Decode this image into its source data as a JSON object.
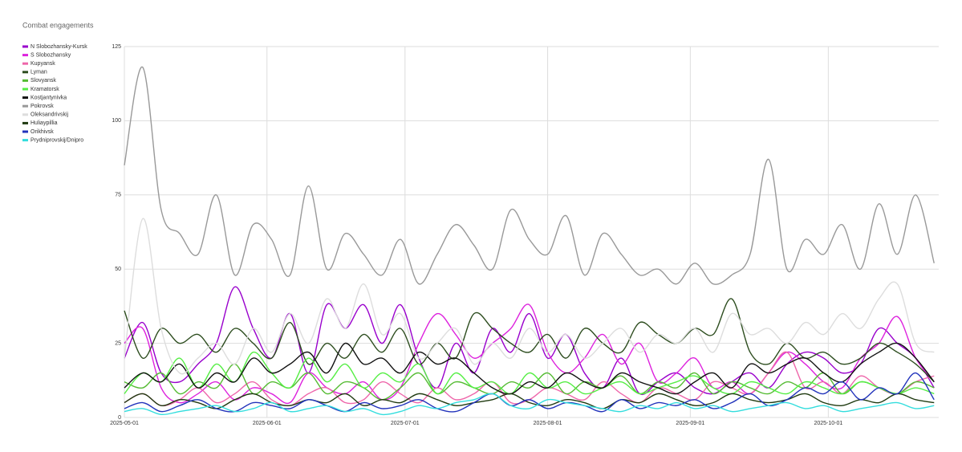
{
  "chart_data": {
    "type": "line",
    "title": "Combat engagements",
    "x": [
      "2025-05-01",
      "2025-05-05",
      "2025-05-09",
      "2025-05-13",
      "2025-05-17",
      "2025-05-21",
      "2025-05-25",
      "2025-05-29",
      "2025-06-02",
      "2025-06-06",
      "2025-06-10",
      "2025-06-14",
      "2025-06-18",
      "2025-06-22",
      "2025-06-26",
      "2025-06-30",
      "2025-07-04",
      "2025-07-08",
      "2025-07-12",
      "2025-07-16",
      "2025-07-20",
      "2025-07-24",
      "2025-07-28",
      "2025-08-01",
      "2025-08-05",
      "2025-08-09",
      "2025-08-13",
      "2025-08-17",
      "2025-08-21",
      "2025-08-25",
      "2025-08-29",
      "2025-09-02",
      "2025-09-06",
      "2025-09-10",
      "2025-09-14",
      "2025-09-18",
      "2025-09-22",
      "2025-09-26",
      "2025-09-30",
      "2025-10-04",
      "2025-10-08",
      "2025-10-12",
      "2025-10-16",
      "2025-10-20",
      "2025-10-24"
    ],
    "xlim": [
      "2025-05-01",
      "2025-10-25"
    ],
    "xticks": [
      "2025-05-01",
      "2025-06-01",
      "2025-07-01",
      "2025-08-01",
      "2025-09-01",
      "2025-10-01"
    ],
    "ylim": [
      0,
      125
    ],
    "yticks": [
      0,
      25,
      50,
      75,
      100,
      125
    ],
    "grid": true,
    "series": [
      {
        "name": "N Slobozhansky-Kursk",
        "color": "#9900cc",
        "values": [
          20,
          32,
          15,
          12,
          18,
          25,
          44,
          30,
          20,
          35,
          15,
          38,
          30,
          38,
          25,
          38,
          20,
          10,
          25,
          15,
          30,
          22,
          35,
          20,
          28,
          15,
          10,
          20,
          8,
          12,
          15,
          10,
          8,
          12,
          15,
          10,
          18,
          22,
          20,
          15,
          18,
          30,
          25,
          20,
          10
        ]
      },
      {
        "name": "S Slobozhansky",
        "color": "#dd22dd",
        "values": [
          25,
          30,
          10,
          5,
          8,
          12,
          6,
          10,
          8,
          5,
          15,
          10,
          8,
          12,
          6,
          10,
          25,
          35,
          28,
          20,
          25,
          30,
          38,
          22,
          15,
          20,
          28,
          18,
          25,
          12,
          15,
          20,
          10,
          12,
          8,
          15,
          22,
          18,
          12,
          10,
          20,
          25,
          34,
          20,
          12
        ]
      },
      {
        "name": "Kupyansk",
        "color": "#ee66aa",
        "values": [
          5,
          8,
          4,
          6,
          10,
          5,
          8,
          12,
          6,
          4,
          8,
          10,
          5,
          6,
          12,
          8,
          5,
          10,
          6,
          8,
          12,
          5,
          6,
          10,
          8,
          6,
          12,
          8,
          5,
          10,
          8,
          6,
          12,
          10,
          8,
          15,
          22,
          10,
          12,
          8,
          14,
          10,
          8,
          12,
          14
        ]
      },
      {
        "name": "Lyman",
        "color": "#2d4d1f",
        "values": [
          36,
          20,
          30,
          25,
          28,
          22,
          30,
          25,
          20,
          32,
          18,
          25,
          20,
          28,
          22,
          30,
          18,
          25,
          20,
          35,
          30,
          25,
          22,
          28,
          20,
          30,
          25,
          22,
          32,
          28,
          25,
          30,
          28,
          40,
          22,
          18,
          25,
          20,
          22,
          18,
          20,
          25,
          22,
          18,
          12
        ]
      },
      {
        "name": "Slovyansk",
        "color": "#55bb33",
        "values": [
          12,
          10,
          15,
          8,
          12,
          10,
          18,
          8,
          12,
          10,
          15,
          8,
          12,
          10,
          6,
          10,
          15,
          8,
          12,
          10,
          8,
          12,
          10,
          15,
          8,
          12,
          10,
          14,
          8,
          12,
          10,
          15,
          8,
          12,
          10,
          8,
          12,
          10,
          15,
          8,
          12,
          10,
          8,
          12,
          10
        ]
      },
      {
        "name": "Kramatorsk",
        "color": "#55ee44",
        "values": [
          8,
          15,
          12,
          20,
          10,
          18,
          12,
          22,
          15,
          10,
          20,
          12,
          18,
          10,
          15,
          12,
          18,
          8,
          15,
          10,
          12,
          8,
          15,
          10,
          12,
          8,
          10,
          12,
          8,
          10,
          12,
          14,
          10,
          8,
          12,
          10,
          8,
          12,
          10,
          8,
          12,
          10,
          8,
          10,
          8
        ]
      },
      {
        "name": "Kostjantynivka",
        "color": "#111111",
        "values": [
          10,
          15,
          12,
          18,
          10,
          15,
          12,
          20,
          15,
          18,
          22,
          15,
          25,
          18,
          20,
          15,
          22,
          18,
          20,
          15,
          10,
          8,
          12,
          10,
          15,
          12,
          10,
          15,
          12,
          10,
          8,
          12,
          15,
          10,
          18,
          15,
          18,
          20,
          15,
          12,
          18,
          22,
          25,
          20,
          12
        ]
      },
      {
        "name": "Pokrovsk",
        "color": "#999999",
        "values": [
          85,
          118,
          70,
          62,
          55,
          75,
          48,
          65,
          60,
          48,
          78,
          50,
          62,
          55,
          48,
          60,
          45,
          55,
          65,
          58,
          50,
          70,
          60,
          55,
          68,
          48,
          62,
          55,
          48,
          50,
          45,
          52,
          45,
          48,
          55,
          87,
          50,
          60,
          55,
          65,
          50,
          72,
          55,
          75,
          52
        ]
      },
      {
        "name": "Oleksandrivskij",
        "color": "#dddddd",
        "values": [
          20,
          67,
          30,
          15,
          20,
          25,
          18,
          30,
          22,
          35,
          25,
          40,
          30,
          45,
          28,
          35,
          20,
          25,
          30,
          18,
          25,
          20,
          30,
          22,
          28,
          20,
          25,
          30,
          22,
          28,
          25,
          30,
          22,
          35,
          28,
          30,
          25,
          32,
          28,
          35,
          30,
          40,
          45,
          25,
          22
        ]
      },
      {
        "name": "Huliaypillia",
        "color": "#1f3a10",
        "values": [
          5,
          8,
          4,
          6,
          5,
          3,
          6,
          8,
          5,
          4,
          6,
          5,
          8,
          4,
          6,
          5,
          8,
          6,
          4,
          5,
          6,
          8,
          5,
          4,
          6,
          5,
          3,
          6,
          5,
          8,
          6,
          4,
          5,
          8,
          6,
          5,
          6,
          8,
          5,
          4,
          6,
          5,
          8,
          6,
          5
        ]
      },
      {
        "name": "Orikhivsk",
        "color": "#2233bb",
        "values": [
          3,
          5,
          2,
          4,
          6,
          3,
          2,
          5,
          4,
          3,
          6,
          4,
          2,
          5,
          3,
          4,
          6,
          3,
          2,
          5,
          8,
          4,
          6,
          3,
          5,
          4,
          2,
          6,
          3,
          5,
          4,
          6,
          3,
          5,
          8,
          4,
          6,
          10,
          8,
          12,
          6,
          10,
          8,
          15,
          6
        ]
      },
      {
        "name": "Prydniprovskij/Dnipro",
        "color": "#33dddd",
        "values": [
          2,
          3,
          1,
          2,
          3,
          4,
          2,
          3,
          5,
          2,
          3,
          4,
          2,
          3,
          1,
          2,
          4,
          3,
          5,
          6,
          8,
          4,
          3,
          6,
          5,
          4,
          3,
          2,
          4,
          3,
          5,
          3,
          4,
          2,
          3,
          4,
          5,
          3,
          4,
          2,
          3,
          4,
          5,
          3,
          4
        ]
      }
    ]
  }
}
